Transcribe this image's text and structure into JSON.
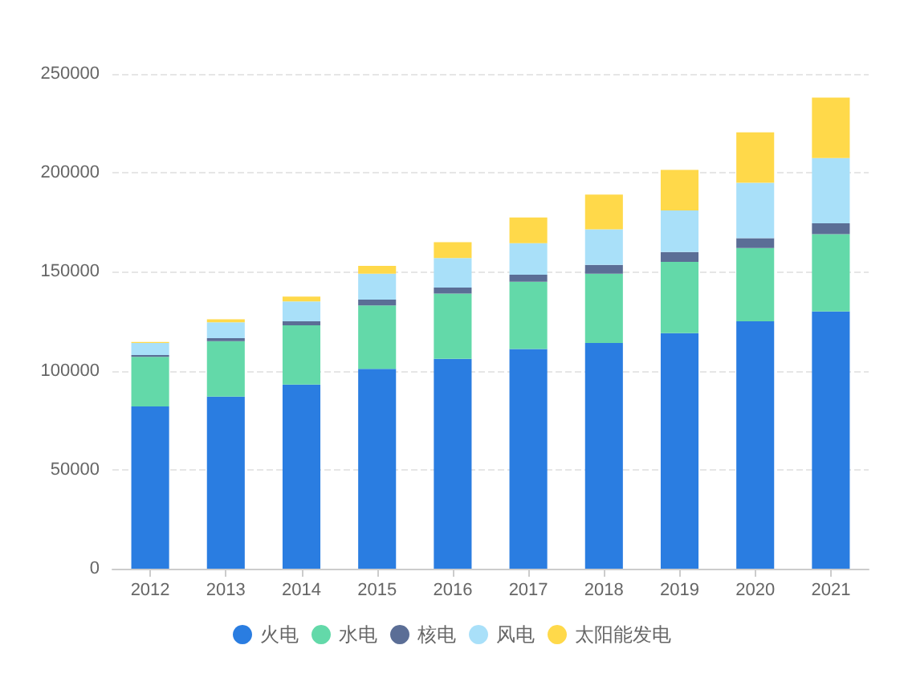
{
  "chart_data": {
    "type": "bar",
    "stacked": true,
    "categories": [
      "2012",
      "2013",
      "2014",
      "2015",
      "2016",
      "2017",
      "2018",
      "2019",
      "2020",
      "2021"
    ],
    "series": [
      {
        "name": "火电",
        "color": "#2a7de1",
        "values": [
          82000,
          87000,
          93000,
          101000,
          106000,
          111000,
          114000,
          119000,
          125000,
          130000
        ]
      },
      {
        "name": "水电",
        "color": "#63d9a9",
        "values": [
          25000,
          28000,
          30000,
          32000,
          33000,
          34000,
          35000,
          36000,
          37000,
          39000
        ]
      },
      {
        "name": "核电",
        "color": "#5b6e96",
        "values": [
          1000,
          1500,
          2000,
          3000,
          3000,
          3500,
          4500,
          5000,
          5000,
          5500
        ]
      },
      {
        "name": "风电",
        "color": "#a9e0f9",
        "values": [
          6000,
          8000,
          10000,
          13000,
          15000,
          16000,
          18000,
          21000,
          28000,
          33000
        ]
      },
      {
        "name": "太阳能发电",
        "color": "#ffd94a",
        "values": [
          500,
          1500,
          2500,
          4000,
          8000,
          13000,
          17500,
          20500,
          25500,
          30500
        ]
      }
    ],
    "ylim": [
      0,
      250000
    ],
    "yticks": [
      0,
      50000,
      100000,
      150000,
      200000,
      250000
    ],
    "grid": "y",
    "legend": "bottom"
  }
}
